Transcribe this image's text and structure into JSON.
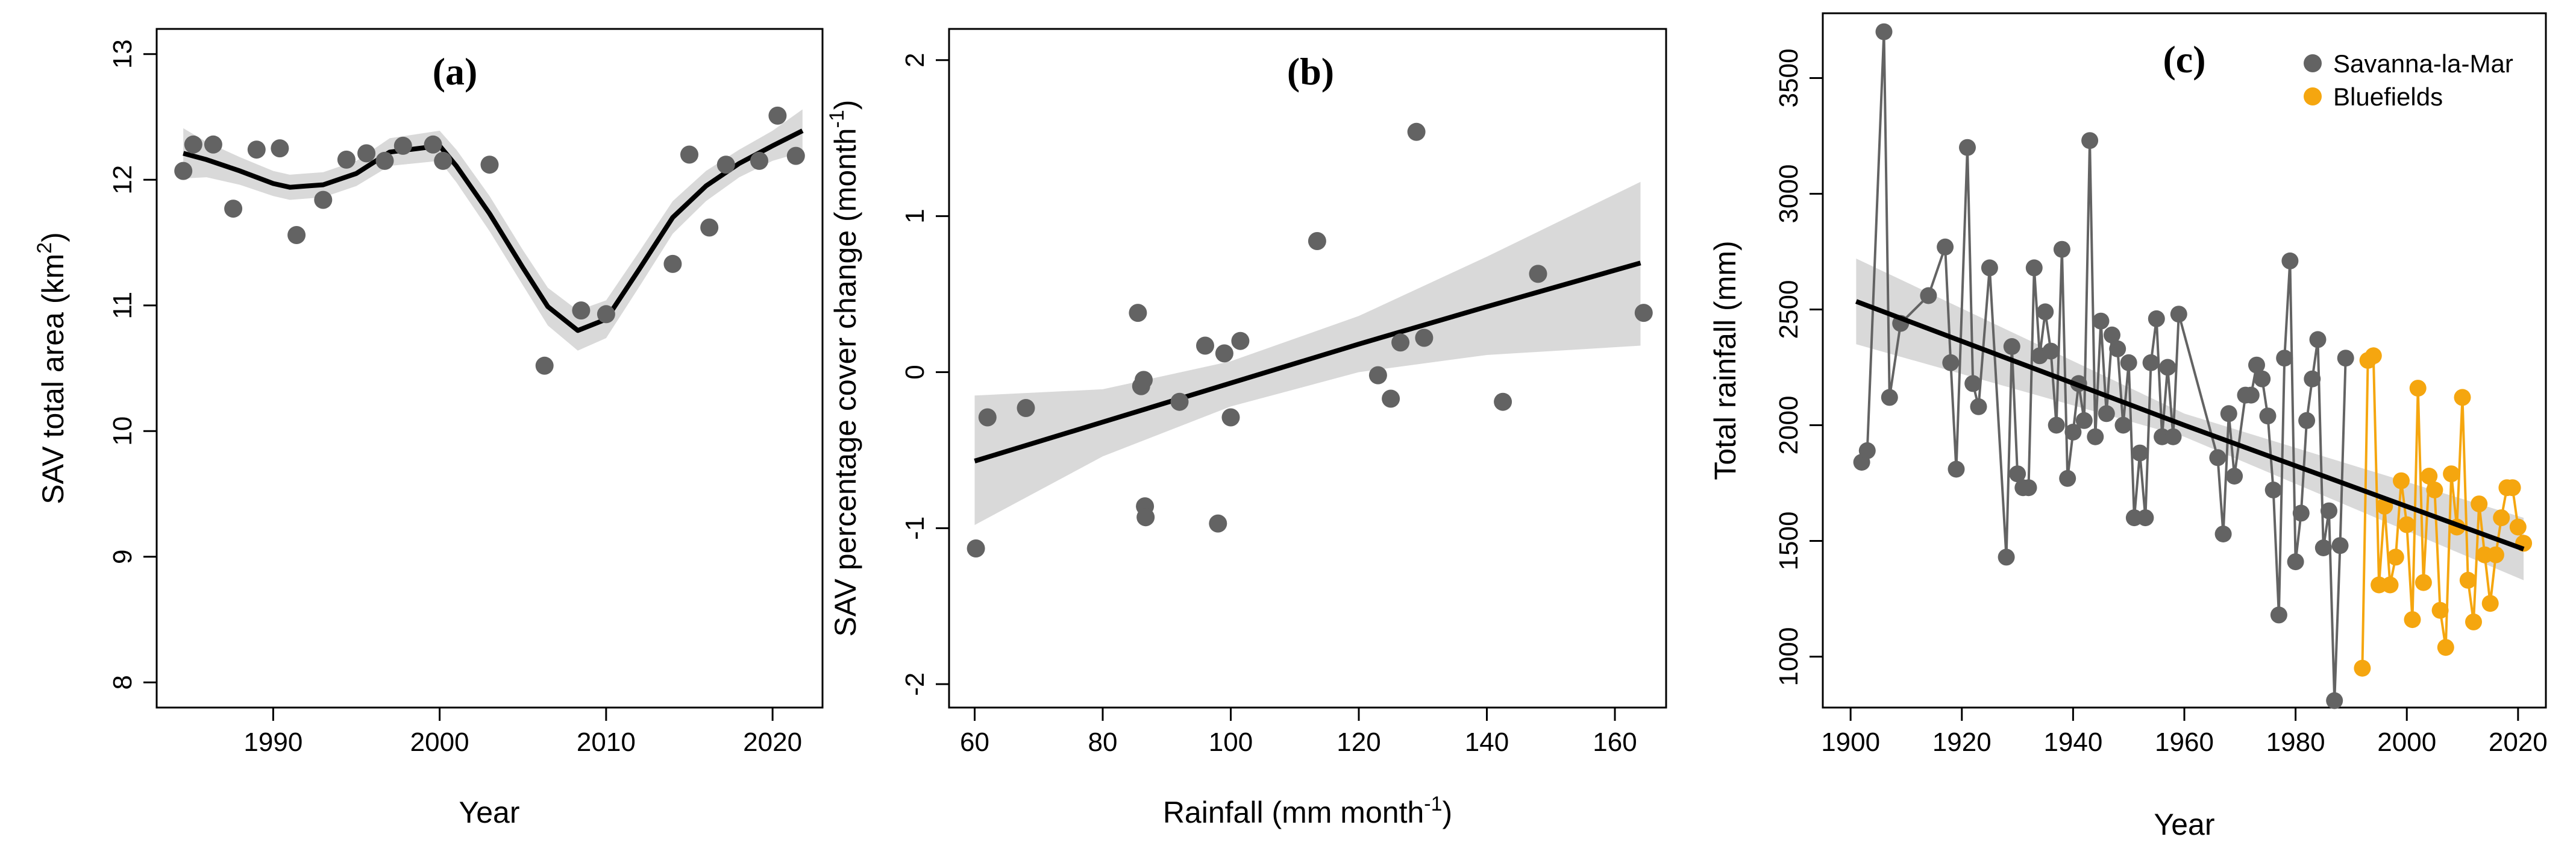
{
  "chart_data": [
    {
      "type": "scatter",
      "panel_label": "(a)",
      "xlabel": "Year",
      "ylabel_text": "SAV total area (km",
      "ylabel_sup": "2",
      "ylabel_close": ")",
      "xlim": [
        1983,
        2023
      ],
      "ylim": [
        7.8,
        13.2
      ],
      "xticks": [
        1990,
        2000,
        2010,
        2020
      ],
      "yticks": [
        8,
        9,
        10,
        11,
        12,
        13
      ],
      "points": {
        "x": [
          1984.6,
          1985.2,
          1986.4,
          1987.6,
          1989.0,
          1990.4,
          1991.4,
          1993.0,
          1994.4,
          1995.6,
          1996.7,
          1997.8,
          1999.6,
          2000.2,
          2003.0,
          2006.3,
          2008.5,
          2010.0,
          2014.0,
          2015.0,
          2016.2,
          2017.2,
          2019.2,
          2020.3,
          2021.4
        ],
        "y": [
          12.07,
          12.28,
          12.28,
          11.77,
          12.24,
          12.25,
          11.56,
          11.84,
          12.16,
          12.21,
          12.15,
          12.27,
          12.28,
          12.15,
          12.12,
          10.52,
          10.96,
          10.93,
          11.33,
          12.2,
          11.62,
          12.12,
          12.15,
          12.51,
          12.19
        ]
      },
      "fit": {
        "x": [
          1984.6,
          1986,
          1988,
          1990,
          1991,
          1992,
          1993,
          1995,
          1997,
          2000,
          2001,
          2003,
          2005,
          2006.5,
          2008.3,
          2010,
          2012,
          2014,
          2016,
          2018,
          2020,
          2021.8
        ],
        "y": [
          12.21,
          12.16,
          12.07,
          11.97,
          11.94,
          11.95,
          11.96,
          12.05,
          12.22,
          12.27,
          12.11,
          11.73,
          11.3,
          10.99,
          10.8,
          10.89,
          11.29,
          11.7,
          11.95,
          12.13,
          12.27,
          12.39
        ],
        "band": [
          0.2,
          0.14,
          0.11,
          0.1,
          0.1,
          0.1,
          0.1,
          0.1,
          0.11,
          0.12,
          0.13,
          0.14,
          0.14,
          0.15,
          0.16,
          0.15,
          0.14,
          0.13,
          0.12,
          0.11,
          0.12,
          0.17
        ]
      }
    },
    {
      "type": "scatter",
      "panel_label": "(b)",
      "xlabel_text": "Rainfall (mm month",
      "xlabel_sup": "-1",
      "xlabel_close": ")",
      "ylabel_text": "SAV percentage cover change (month",
      "ylabel_sup": "-1",
      "ylabel_close": ")",
      "xlim": [
        56,
        168
      ],
      "ylim": [
        -2.15,
        2.2
      ],
      "xticks": [
        60,
        80,
        100,
        120,
        140,
        160
      ],
      "yticks": [
        -2,
        -1,
        0,
        1,
        2
      ],
      "points": {
        "x": [
          60.2,
          62.0,
          68.0,
          85.5,
          86.0,
          86.4,
          86.6,
          86.7,
          92.0,
          96.0,
          98.0,
          99.0,
          100.0,
          101.5,
          113.5,
          123.0,
          125.0,
          126.5,
          129.0,
          130.2,
          142.5,
          148.0,
          164.5
        ],
        "y": [
          -1.13,
          -0.29,
          -0.23,
          0.38,
          -0.09,
          -0.05,
          -0.86,
          -0.93,
          -0.19,
          0.17,
          -0.97,
          0.12,
          -0.29,
          0.2,
          0.84,
          -0.02,
          -0.17,
          0.19,
          1.54,
          0.22,
          -0.19,
          0.63,
          0.38
        ]
      },
      "fit": {
        "x": [
          60,
          80,
          100,
          120,
          140,
          164
        ],
        "y": [
          -0.57,
          -0.32,
          -0.07,
          0.18,
          0.42,
          0.7
        ],
        "lower": [
          -0.98,
          -0.54,
          -0.22,
          0.0,
          0.11,
          0.17
        ],
        "upper": [
          -0.15,
          -0.11,
          0.07,
          0.36,
          0.74,
          1.22
        ]
      }
    },
    {
      "type": "line",
      "panel_label": "(c)",
      "xlabel": "Year",
      "ylabel": "Total rainfall (mm)",
      "xlim": [
        1895,
        2025
      ],
      "ylim": [
        780,
        3780
      ],
      "xticks": [
        1900,
        1920,
        1940,
        1960,
        1980,
        2000,
        2020
      ],
      "yticks": [
        1000,
        1500,
        2000,
        2500,
        3000,
        3500
      ],
      "legend_position": "top-right",
      "series": [
        {
          "name": "Savanna-la-Mar",
          "color": "#636363",
          "x": [
            1902,
            1903,
            1906,
            1907,
            1909,
            1914,
            1917,
            1918,
            1919,
            1921,
            1922,
            1923,
            1925,
            1928,
            1929,
            1930,
            1931,
            1932,
            1933,
            1934,
            1935,
            1936,
            1937,
            1938,
            1939,
            1940,
            1941,
            1942,
            1943,
            1944,
            1945,
            1946,
            1947,
            1948,
            1949,
            1950,
            1951,
            1952,
            1953,
            1954,
            1955,
            1956,
            1957,
            1958,
            1959,
            1966,
            1967,
            1968,
            1969,
            1971,
            1972,
            1973,
            1974,
            1975,
            1976,
            1977,
            1978,
            1979,
            1980,
            1981,
            1982,
            1983,
            1984,
            1985,
            1986,
            1987,
            1988,
            1989
          ],
          "y": [
            1840,
            1890,
            3700,
            2120,
            2440,
            2560,
            2770,
            2270,
            1810,
            3200,
            2180,
            2080,
            2680,
            1430,
            2340,
            1790,
            1730,
            1730,
            2680,
            2300,
            2490,
            2320,
            2000,
            2760,
            1770,
            1970,
            2180,
            2020,
            3230,
            1950,
            2450,
            2050,
            2390,
            2330,
            2000,
            2270,
            1600,
            1880,
            1600,
            2270,
            2460,
            1950,
            2250,
            1950,
            2480,
            1860,
            1530,
            2050,
            1780,
            2130,
            2130,
            2260,
            2200,
            2040,
            1720,
            1180,
            2290,
            2710,
            1410,
            1620,
            2020,
            2200,
            2370,
            1470,
            1630,
            810,
            1480,
            2290
          ]
        },
        {
          "name": "Bluefields",
          "color": "#f5a60f",
          "x": [
            1992,
            1993,
            1994,
            1995,
            1996,
            1997,
            1998,
            1999,
            2000,
            2001,
            2002,
            2003,
            2004,
            2005,
            2006,
            2007,
            2008,
            2009,
            2010,
            2011,
            2012,
            2013,
            2014,
            2015,
            2016,
            2017,
            2018,
            2019,
            2020,
            2021
          ],
          "y": [
            950,
            2280,
            2300,
            1310,
            1650,
            1310,
            1430,
            1760,
            1570,
            1160,
            2160,
            1320,
            1780,
            1720,
            1200,
            1040,
            1790,
            1560,
            2120,
            1330,
            1150,
            1660,
            1440,
            1230,
            1440,
            1600,
            1730,
            1730,
            1560,
            1490
          ]
        }
      ],
      "fit": {
        "x": [
          1901,
          1960,
          2021
        ],
        "y": [
          2535,
          2000,
          1465
        ],
        "lower": [
          2350,
          1950,
          1330
        ],
        "upper": [
          2720,
          2050,
          1600
        ]
      }
    }
  ]
}
